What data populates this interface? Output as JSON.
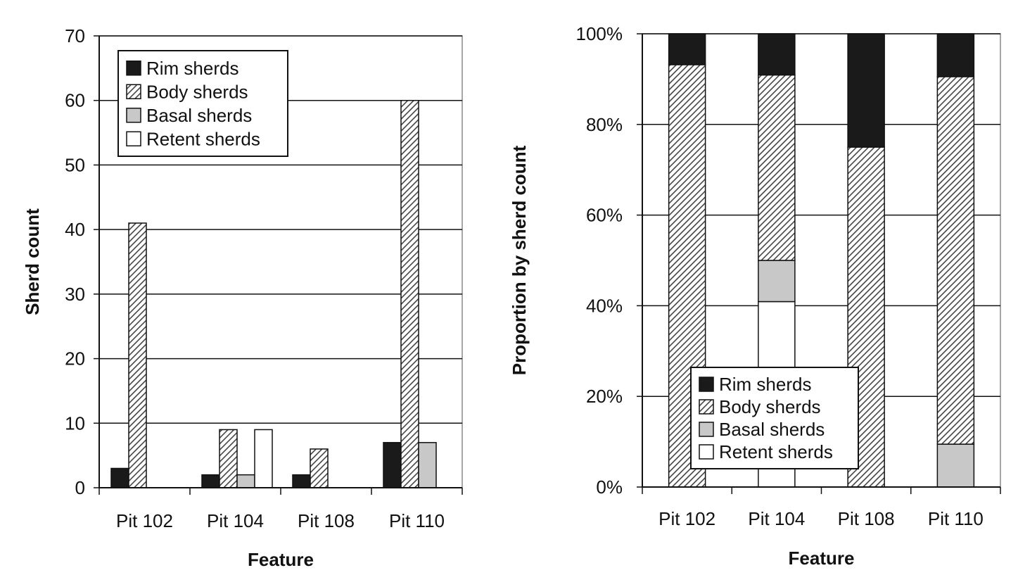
{
  "chart_data": [
    {
      "type": "bar",
      "categories": [
        "Pit 102",
        "Pit 104",
        "Pit 108",
        "Pit 110"
      ],
      "series": [
        {
          "name": "Rim sherds",
          "values": [
            3,
            2,
            2,
            7
          ]
        },
        {
          "name": "Body sherds",
          "values": [
            41,
            9,
            6,
            60
          ]
        },
        {
          "name": "Basal sherds",
          "values": [
            0,
            2,
            0,
            7
          ]
        },
        {
          "name": "Retent sherds",
          "values": [
            0,
            9,
            0,
            0
          ]
        }
      ],
      "yticks": [
        "0",
        "10",
        "20",
        "30",
        "40",
        "50",
        "60",
        "70"
      ],
      "xlabel": "Feature",
      "ylabel": "Sherd count",
      "ylim": [
        0,
        70
      ],
      "grid": true,
      "legend": "top-left"
    },
    {
      "type": "bar",
      "stacked": "percent",
      "categories": [
        "Pit 102",
        "Pit 104",
        "Pit 108",
        "Pit 110"
      ],
      "series": [
        {
          "name": "Rim sherds",
          "values": [
            3,
            2,
            2,
            7
          ]
        },
        {
          "name": "Body sherds",
          "values": [
            41,
            9,
            6,
            60
          ]
        },
        {
          "name": "Basal sherds",
          "values": [
            0,
            2,
            0,
            7
          ]
        },
        {
          "name": "Retent sherds",
          "values": [
            0,
            9,
            0,
            0
          ]
        }
      ],
      "yticks": [
        "0%",
        "20%",
        "40%",
        "60%",
        "80%",
        "100%"
      ],
      "xlabel": "Feature",
      "ylabel": "Proportion by sherd count",
      "ylim": [
        0,
        100
      ],
      "grid": true,
      "legend": "bottom-left"
    }
  ],
  "style": {
    "rim_color": "#1a1a1a",
    "basal_color": "#c8c8c8",
    "retent_color": "#ffffff",
    "body_pattern": "diagonal-hatch"
  }
}
